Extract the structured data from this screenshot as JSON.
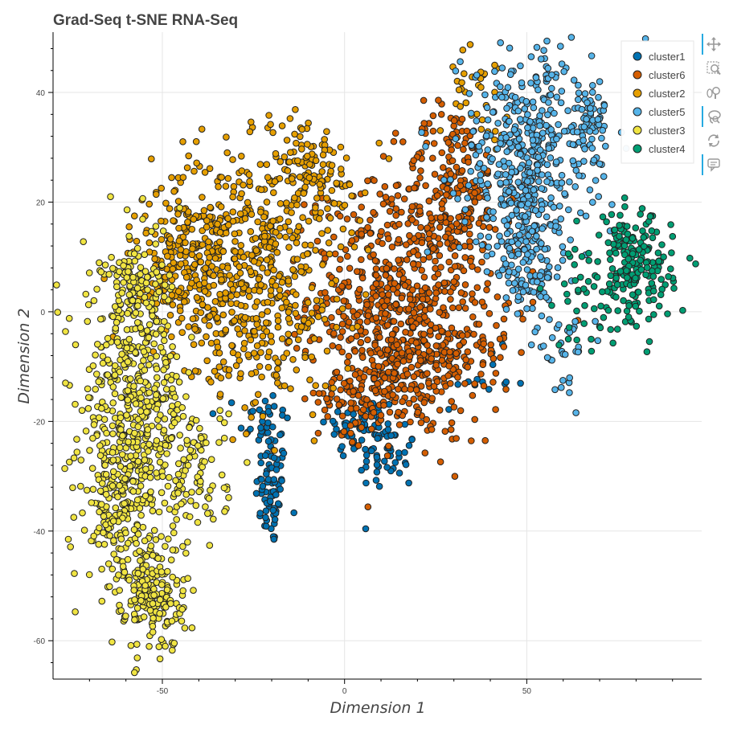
{
  "chart_data": {
    "type": "scatter",
    "title": "Grad-Seq t-SNE RNA-Seq",
    "xlabel": "Dimension 1",
    "ylabel": "Dimension 2",
    "xlim": [
      -80,
      98
    ],
    "ylim": [
      -67,
      51
    ],
    "x_ticks": [
      -50,
      0,
      50
    ],
    "y_ticks": [
      40,
      20,
      0,
      -20,
      -40,
      -60
    ],
    "grid": true,
    "legend_position": "top-right",
    "series": [
      {
        "name": "cluster1",
        "color": "#0072b2",
        "blobs": [
          {
            "cx": -20,
            "cy": -33,
            "sx": 2.2,
            "sy": 5,
            "n": 70
          },
          {
            "cx": -22,
            "cy": -20,
            "sx": 3.5,
            "sy": 3,
            "n": 35
          },
          {
            "cx": 5,
            "cy": -21,
            "sx": 5,
            "sy": 3,
            "n": 70
          },
          {
            "cx": 12,
            "cy": -27,
            "sx": 4,
            "sy": 3,
            "n": 40
          },
          {
            "cx": 38,
            "cy": -12,
            "sx": 6,
            "sy": 2.5,
            "n": 15
          }
        ]
      },
      {
        "name": "cluster6",
        "color": "#d55e00",
        "blobs": [
          {
            "cx": 12,
            "cy": 3,
            "sx": 11,
            "sy": 10,
            "n": 450
          },
          {
            "cx": 18,
            "cy": -9,
            "sx": 9,
            "sy": 7,
            "n": 230
          },
          {
            "cx": 30,
            "cy": 22,
            "sx": 7,
            "sy": 8,
            "n": 200
          },
          {
            "cx": 5,
            "cy": -15,
            "sx": 6,
            "sy": 3,
            "n": 70
          },
          {
            "cx": 32,
            "cy": -5,
            "sx": 10,
            "sy": 8,
            "n": 100
          }
        ]
      },
      {
        "name": "cluster2",
        "color": "#e69f00",
        "blobs": [
          {
            "cx": -28,
            "cy": 12,
            "sx": 12,
            "sy": 9,
            "n": 420
          },
          {
            "cx": -45,
            "cy": 8,
            "sx": 7,
            "sy": 8,
            "n": 170
          },
          {
            "cx": -20,
            "cy": -5,
            "sx": 9,
            "sy": 7,
            "n": 150
          },
          {
            "cx": -10,
            "cy": 25,
            "sx": 8,
            "sy": 5,
            "n": 120
          },
          {
            "cx": 37,
            "cy": 40,
            "sx": 4,
            "sy": 4,
            "n": 35
          }
        ]
      },
      {
        "name": "cluster5",
        "color": "#56b4e9",
        "blobs": [
          {
            "cx": 50,
            "cy": 28,
            "sx": 9,
            "sy": 10,
            "n": 430
          },
          {
            "cx": 67,
            "cy": 35,
            "sx": 4,
            "sy": 4,
            "n": 60
          },
          {
            "cx": 50,
            "cy": 10,
            "sx": 5,
            "sy": 6,
            "n": 120
          },
          {
            "cx": 60,
            "cy": -6,
            "sx": 4,
            "sy": 4,
            "n": 35
          }
        ]
      },
      {
        "name": "cluster3",
        "color": "#f0e442",
        "blobs": [
          {
            "cx": -58,
            "cy": -15,
            "sx": 7,
            "sy": 12,
            "n": 450
          },
          {
            "cx": -62,
            "cy": -35,
            "sx": 5,
            "sy": 8,
            "n": 200
          },
          {
            "cx": -52,
            "cy": -52,
            "sx": 4,
            "sy": 5,
            "n": 170
          },
          {
            "cx": -42,
            "cy": -30,
            "sx": 5,
            "sy": 7,
            "n": 120
          },
          {
            "cx": -57,
            "cy": 5,
            "sx": 5,
            "sy": 3,
            "n": 60
          }
        ]
      },
      {
        "name": "cluster4",
        "color": "#009e73",
        "blobs": [
          {
            "cx": 80,
            "cy": 7,
            "sx": 5,
            "sy": 5,
            "n": 170
          },
          {
            "cx": 66,
            "cy": 3,
            "sx": 4,
            "sy": 5,
            "n": 40
          },
          {
            "cx": 75,
            "cy": 15,
            "sx": 2,
            "sy": 1.5,
            "n": 20
          }
        ]
      }
    ]
  },
  "toolbar": [
    {
      "name": "pan-tool",
      "icon": "move-arrows-icon",
      "active": true
    },
    {
      "name": "box-zoom-tool",
      "icon": "box-zoom-icon",
      "active": false
    },
    {
      "name": "wheel-zoom-tool",
      "icon": "wheel-zoom-icon",
      "active": false
    },
    {
      "name": "lasso-tool",
      "icon": "lasso-icon",
      "active": true
    },
    {
      "name": "reset-tool",
      "icon": "reset-icon",
      "active": false
    },
    {
      "name": "hover-tool",
      "icon": "hover-icon",
      "active": true
    }
  ]
}
